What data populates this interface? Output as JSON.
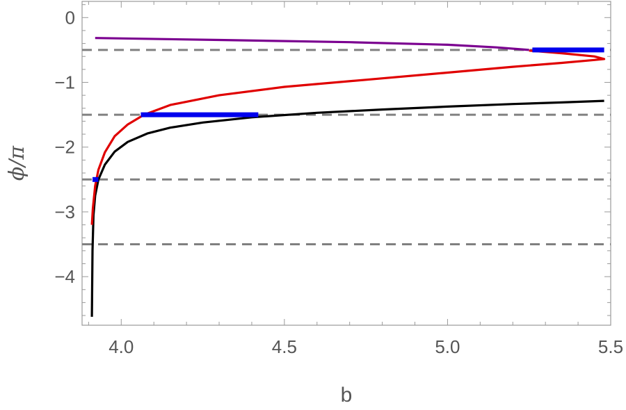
{
  "chart_data": {
    "type": "line",
    "xlabel": "b",
    "ylabel": "ϕ/π",
    "xlim": [
      3.88,
      5.5
    ],
    "ylim": [
      -4.75,
      0.25
    ],
    "x_ticks": [
      {
        "value": 4.0,
        "label": "4.0"
      },
      {
        "value": 4.5,
        "label": "4.5"
      },
      {
        "value": 5.0,
        "label": "5.0"
      },
      {
        "value": 5.5,
        "label": "5.5"
      }
    ],
    "y_ticks": [
      {
        "value": 0,
        "label": "0"
      },
      {
        "value": -1,
        "label": "−1"
      },
      {
        "value": -2,
        "label": "−2"
      },
      {
        "value": -3,
        "label": "−3"
      },
      {
        "value": -4,
        "label": "−4"
      }
    ],
    "grid": false,
    "reference_lines": {
      "y": [
        -0.5,
        -1.5,
        -2.5,
        -3.5
      ],
      "color": "#808080",
      "style": "dashed"
    },
    "series": [
      {
        "color": "#000000",
        "points": [
          [
            3.91,
            -4.62
          ],
          [
            3.912,
            -3.6
          ],
          [
            3.915,
            -3.05
          ],
          [
            3.92,
            -2.75
          ],
          [
            3.93,
            -2.5
          ],
          [
            3.95,
            -2.27
          ],
          [
            3.98,
            -2.07
          ],
          [
            4.02,
            -1.92
          ],
          [
            4.08,
            -1.79
          ],
          [
            4.15,
            -1.7
          ],
          [
            4.25,
            -1.62
          ],
          [
            4.4,
            -1.54
          ],
          [
            4.6,
            -1.47
          ],
          [
            4.8,
            -1.42
          ],
          [
            5.0,
            -1.375
          ],
          [
            5.2,
            -1.335
          ],
          [
            5.35,
            -1.31
          ],
          [
            5.48,
            -1.285
          ]
        ]
      },
      {
        "color": "#e00000",
        "points": [
          [
            3.91,
            -3.2
          ],
          [
            3.913,
            -2.95
          ],
          [
            3.92,
            -2.6
          ],
          [
            3.93,
            -2.35
          ],
          [
            3.95,
            -2.08
          ],
          [
            3.98,
            -1.83
          ],
          [
            4.02,
            -1.65
          ],
          [
            4.07,
            -1.5
          ],
          [
            4.15,
            -1.35
          ],
          [
            4.3,
            -1.2
          ],
          [
            4.5,
            -1.07
          ],
          [
            4.75,
            -0.96
          ],
          [
            5.0,
            -0.85
          ],
          [
            5.2,
            -0.76
          ],
          [
            5.35,
            -0.7
          ],
          [
            5.45,
            -0.655
          ],
          [
            5.48,
            -0.64
          ],
          [
            5.45,
            -0.6
          ],
          [
            5.35,
            -0.55
          ],
          [
            5.25,
            -0.51
          ]
        ]
      },
      {
        "color": "#7b0090",
        "points": [
          [
            3.92,
            -0.315
          ],
          [
            4.3,
            -0.345
          ],
          [
            4.7,
            -0.38
          ],
          [
            5.0,
            -0.42
          ],
          [
            5.15,
            -0.46
          ],
          [
            5.25,
            -0.5
          ]
        ]
      }
    ],
    "highlight_segments": [
      {
        "color": "#0000ee",
        "x": [
          3.912,
          3.93
        ],
        "y": -2.5
      },
      {
        "color": "#0000ee",
        "x": [
          4.06,
          4.42
        ],
        "y": -1.5
      },
      {
        "color": "#0000ee",
        "x": [
          5.26,
          5.48
        ],
        "y": -0.5
      }
    ]
  }
}
